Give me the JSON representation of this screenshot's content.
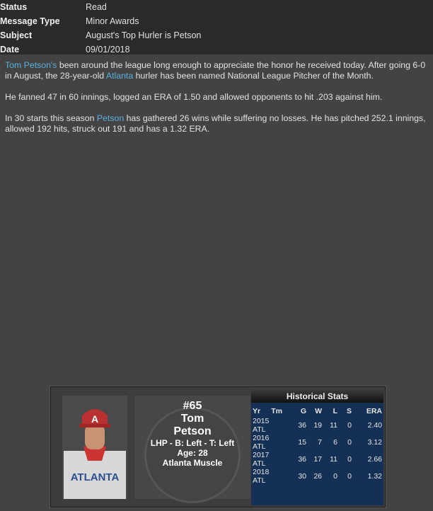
{
  "header": [
    {
      "key": "Status",
      "value": "Read"
    },
    {
      "key": "Message Type",
      "value": "Minor Awards"
    },
    {
      "key": "Subject",
      "value": "August's Top Hurler is Petson"
    },
    {
      "key": "Date",
      "value": "09/01/2018"
    }
  ],
  "body": {
    "p1_link1": "Tom Petson's",
    "p1_a": " been around the league long enough to appreciate the honor he received today. After going 6-0 in August, the 28-year-old ",
    "p1_link2": "Atlanta",
    "p1_b": " hurler has been named National League Pitcher of the Month.",
    "p2": "He fanned 47 in 60 innings, logged an ERA of 1.50 and allowed opponents to hit .203 against him.",
    "p3_a": "In 30 starts this season ",
    "p3_link": "Petson",
    "p3_b": " has gathered 26 wins while suffering no losses. He has pitched 252.1 innings, allowed 192 hits, struck out 191 and has a 1.32 ERA."
  },
  "card": {
    "number": "#65",
    "first": "Tom",
    "last": "Petson",
    "bio": "LHP - B: Left - T: Left",
    "age": "Age: 28",
    "team": "Atlanta Muscle",
    "jersey_text": "ATLANTA",
    "cap_letter": "A",
    "stats_title": "Historical Stats",
    "columns": [
      "Yr",
      "Tm",
      "G",
      "W",
      "L",
      "S",
      "ERA"
    ],
    "rows": [
      [
        "2015",
        "ATL",
        "36",
        "19",
        "11",
        "0",
        "2.40"
      ],
      [
        "2016",
        "ATL",
        "15",
        "7",
        "6",
        "0",
        "3.12"
      ],
      [
        "2017",
        "ATL",
        "36",
        "17",
        "11",
        "0",
        "2.66"
      ],
      [
        "2018",
        "ATL",
        "30",
        "26",
        "0",
        "0",
        "1.32"
      ]
    ]
  }
}
